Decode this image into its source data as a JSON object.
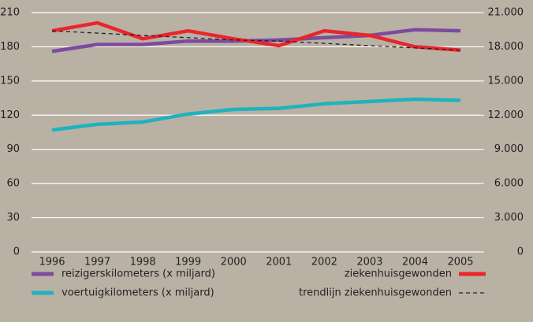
{
  "chart_data": {
    "type": "line",
    "categories": [
      "1996",
      "1997",
      "1998",
      "1999",
      "2000",
      "2001",
      "2002",
      "2003",
      "2004",
      "2005"
    ],
    "series": [
      {
        "name": "reizigerskilometers (x miljard)",
        "color": "#7d4b9e",
        "values": [
          176,
          182,
          182,
          185,
          185,
          186,
          188,
          190,
          195,
          194
        ]
      },
      {
        "name": "voertuigkilometers (x miljard)",
        "color": "#1eb3bd",
        "values": [
          107,
          112,
          114,
          121,
          125,
          126,
          130,
          132,
          134,
          133
        ]
      },
      {
        "name": "ziekenhuisgewonden",
        "color": "#e8262b",
        "axis": "y2",
        "values": [
          19400,
          20100,
          18700,
          19400,
          18700,
          18100,
          19400,
          19000,
          18000,
          17700
        ]
      },
      {
        "name": "trendlijn ziekenhuisgewonden",
        "color": "#222222",
        "axis": "y2",
        "dashed": true,
        "values": [
          19400,
          19200,
          19000,
          18800,
          18600,
          18500,
          18300,
          18100,
          17900,
          17700
        ]
      }
    ],
    "ylim": [
      0,
      210
    ],
    "yticks": [
      0,
      30,
      60,
      90,
      120,
      150,
      180,
      210
    ],
    "y2lim": [
      0,
      21000
    ],
    "y2ticks": [
      0,
      {
        "value": 3000,
        "label": "3.000"
      },
      {
        "value": 6000,
        "label": "6.000"
      },
      {
        "value": 9000,
        "label": "9.000"
      },
      {
        "value": 12000,
        "label": "12.000"
      },
      {
        "value": 15000,
        "label": "15.000"
      },
      {
        "value": 18000,
        "label": "18.000"
      },
      {
        "value": 21000,
        "label": "21.000"
      }
    ],
    "grid": true,
    "legend": "bottom"
  }
}
